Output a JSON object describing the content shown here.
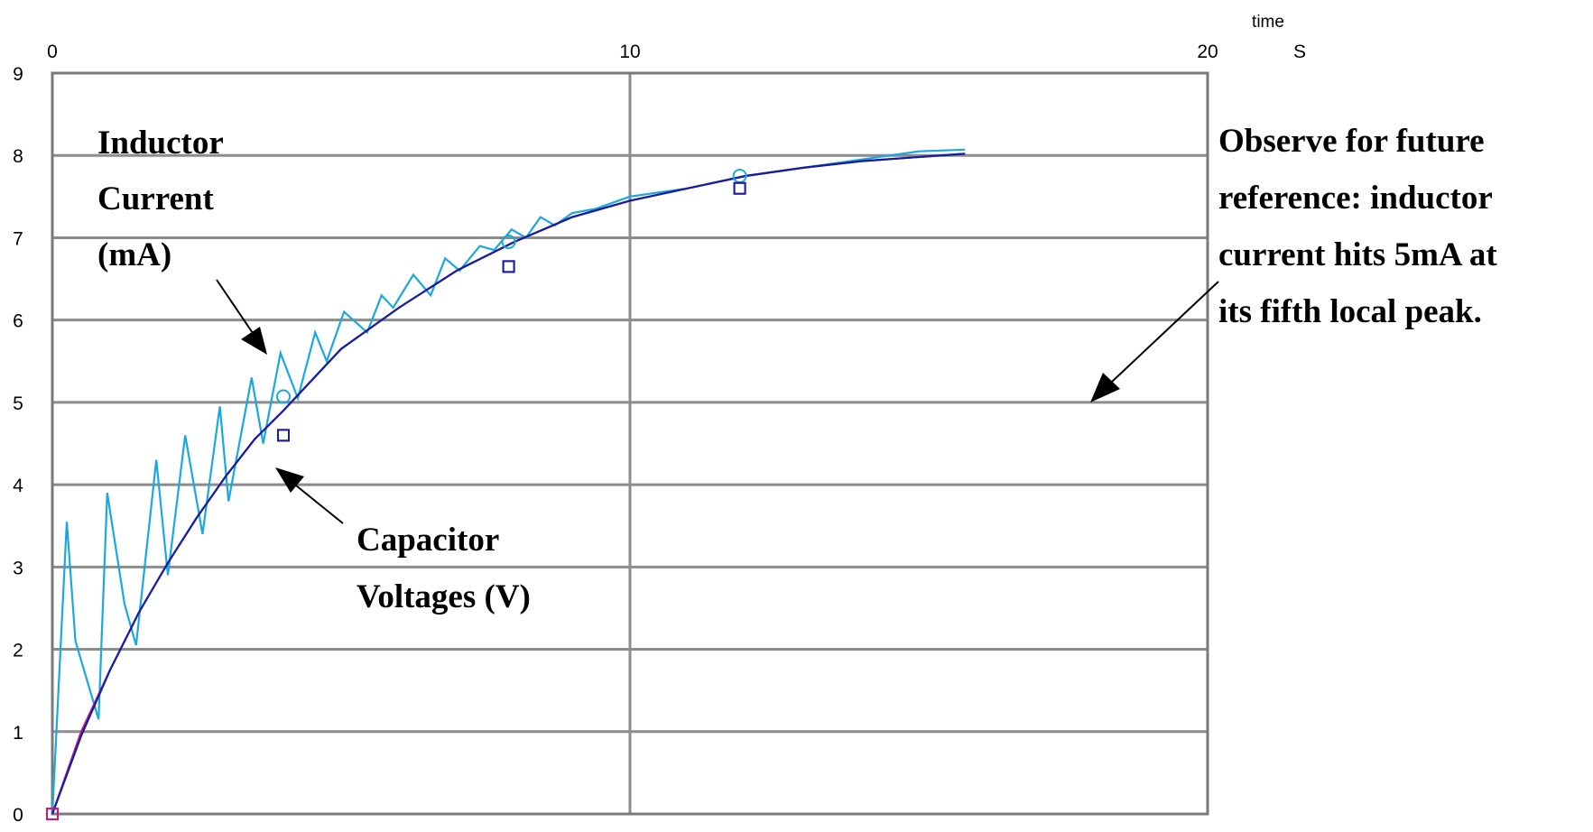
{
  "chart_data": {
    "type": "line",
    "title": "",
    "xlabel": "time",
    "x_unit": "S",
    "ylabel": "",
    "xlim": [
      0,
      20
    ],
    "ylim": [
      0,
      9
    ],
    "x_ticks": [
      "0",
      "10",
      "20"
    ],
    "y_ticks": [
      "0",
      "1",
      "2",
      "3",
      "4",
      "5",
      "6",
      "7",
      "8",
      "9"
    ],
    "grid": true,
    "series": [
      {
        "name": "",
        "color": "#1aa8e0",
        "x": [
          0,
          0.25,
          0.4,
          0.8,
          0.95,
          1.25,
          1.45,
          1.8,
          2.0,
          2.3,
          2.6,
          2.9,
          3.05,
          3.45,
          3.65,
          3.95,
          4.25,
          4.55,
          4.75,
          5.05,
          5.45,
          5.7,
          5.9,
          6.25,
          6.55,
          6.8,
          7.05,
          7.4,
          7.65,
          7.95,
          8.2,
          8.45,
          8.7,
          9.0,
          9.4,
          10.0,
          11.0,
          12.0,
          13.0,
          14.0,
          15.0,
          15.8
        ],
        "y": [
          0,
          3.55,
          2.1,
          1.15,
          3.9,
          2.55,
          2.05,
          4.3,
          2.9,
          4.6,
          3.4,
          4.95,
          3.8,
          5.3,
          4.5,
          5.6,
          5.05,
          5.85,
          5.5,
          6.1,
          5.85,
          6.3,
          6.15,
          6.55,
          6.3,
          6.75,
          6.6,
          6.9,
          6.85,
          7.1,
          7.0,
          7.25,
          7.15,
          7.3,
          7.35,
          7.5,
          7.6,
          7.75,
          7.85,
          7.95,
          8.05,
          8.07
        ],
        "markers": [
          [
            4.0,
            5.07
          ],
          [
            7.9,
            6.95
          ],
          [
            11.9,
            7.75
          ]
        ]
      },
      {
        "name": "",
        "color": "#d4147c",
        "x": [
          0,
          0.5,
          1.0,
          1.5,
          2.0,
          2.5,
          3.0,
          3.5,
          4.0,
          5.0,
          6.0,
          7.0,
          8.0,
          9.0,
          10.0,
          11.0,
          12.0,
          13.0,
          14.0,
          15.0,
          15.8
        ],
        "y": [
          0,
          1.0,
          1.75,
          2.45,
          3.05,
          3.6,
          4.1,
          4.55,
          4.9,
          5.65,
          6.15,
          6.6,
          6.95,
          7.25,
          7.45,
          7.6,
          7.75,
          7.85,
          7.93,
          7.98,
          8.02
        ],
        "markers": [
          [
            4.0,
            4.6
          ],
          [
            7.9,
            6.65
          ],
          [
            11.9,
            7.6
          ]
        ]
      },
      {
        "name": "",
        "color": "#1020a0",
        "x": [
          0,
          0.5,
          1.0,
          1.5,
          2.0,
          2.5,
          3.0,
          3.5,
          4.0,
          5.0,
          6.0,
          7.0,
          8.0,
          9.0,
          10.0,
          11.0,
          12.0,
          13.0,
          14.0,
          15.0,
          15.8
        ],
        "y": [
          0,
          0.95,
          1.75,
          2.45,
          3.05,
          3.6,
          4.1,
          4.55,
          4.9,
          5.65,
          6.15,
          6.6,
          6.95,
          7.25,
          7.45,
          7.6,
          7.75,
          7.85,
          7.93,
          7.98,
          8.02
        ],
        "markers": [
          [
            4.0,
            4.6
          ],
          [
            7.9,
            6.65
          ],
          [
            11.9,
            7.6
          ]
        ]
      }
    ],
    "annotations": [
      {
        "lines": [
          "Inductor",
          "Current",
          "(mA)"
        ]
      },
      {
        "lines": [
          "Capacitor",
          "Voltages (V)"
        ]
      },
      {
        "lines": [
          "Observe for future",
          "reference: inductor",
          "current hits 5mA at",
          "its fifth local peak."
        ]
      }
    ]
  }
}
